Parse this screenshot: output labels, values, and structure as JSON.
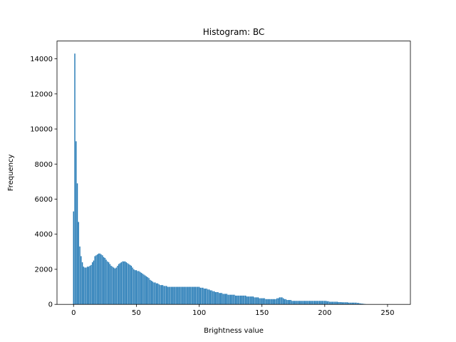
{
  "chart_data": {
    "type": "bar",
    "title": "Histogram: BC",
    "xlabel": "Brightness value",
    "ylabel": "Frequency",
    "color": "#1f77b4",
    "x": [
      0,
      1,
      2,
      3,
      4,
      5,
      6,
      7,
      8,
      9,
      10,
      11,
      12,
      13,
      14,
      15,
      16,
      17,
      18,
      19,
      20,
      21,
      22,
      23,
      24,
      25,
      26,
      27,
      28,
      29,
      30,
      31,
      32,
      33,
      34,
      35,
      36,
      37,
      38,
      39,
      40,
      41,
      42,
      43,
      44,
      45,
      46,
      47,
      48,
      49,
      50,
      51,
      52,
      53,
      54,
      55,
      56,
      57,
      58,
      59,
      60,
      61,
      62,
      63,
      64,
      65,
      66,
      67,
      68,
      69,
      70,
      71,
      72,
      73,
      74,
      75,
      76,
      77,
      78,
      79,
      80,
      81,
      82,
      83,
      84,
      85,
      86,
      87,
      88,
      89,
      90,
      91,
      92,
      93,
      94,
      95,
      96,
      97,
      98,
      99,
      100,
      101,
      102,
      103,
      104,
      105,
      106,
      107,
      108,
      109,
      110,
      111,
      112,
      113,
      114,
      115,
      116,
      117,
      118,
      119,
      120,
      121,
      122,
      123,
      124,
      125,
      126,
      127,
      128,
      129,
      130,
      131,
      132,
      133,
      134,
      135,
      136,
      137,
      138,
      139,
      140,
      141,
      142,
      143,
      144,
      145,
      146,
      147,
      148,
      149,
      150,
      151,
      152,
      153,
      154,
      155,
      156,
      157,
      158,
      159,
      160,
      161,
      162,
      163,
      164,
      165,
      166,
      167,
      168,
      169,
      170,
      171,
      172,
      173,
      174,
      175,
      176,
      177,
      178,
      179,
      180,
      181,
      182,
      183,
      184,
      185,
      186,
      187,
      188,
      189,
      190,
      191,
      192,
      193,
      194,
      195,
      196,
      197,
      198,
      199,
      200,
      201,
      202,
      203,
      204,
      205,
      206,
      207,
      208,
      209,
      210,
      211,
      212,
      213,
      214,
      215,
      216,
      217,
      218,
      219,
      220,
      221,
      222,
      223,
      224,
      225,
      226,
      227,
      228,
      229,
      230,
      231,
      232,
      233,
      234,
      235,
      236,
      237,
      238,
      239,
      240,
      241,
      242,
      243,
      244,
      245,
      246,
      247,
      248,
      249,
      250,
      251,
      252,
      253,
      254,
      255
    ],
    "values": [
      5300,
      14300,
      9300,
      6900,
      4700,
      3300,
      2750,
      2400,
      2150,
      2100,
      2100,
      2150,
      2150,
      2200,
      2250,
      2400,
      2500,
      2750,
      2800,
      2850,
      2900,
      2900,
      2850,
      2800,
      2700,
      2650,
      2550,
      2450,
      2400,
      2300,
      2200,
      2150,
      2100,
      2050,
      2100,
      2200,
      2300,
      2350,
      2400,
      2450,
      2450,
      2450,
      2400,
      2350,
      2300,
      2250,
      2200,
      2100,
      2000,
      1950,
      1950,
      1900,
      1900,
      1850,
      1800,
      1750,
      1700,
      1650,
      1600,
      1550,
      1500,
      1400,
      1350,
      1300,
      1250,
      1250,
      1200,
      1200,
      1150,
      1100,
      1100,
      1100,
      1050,
      1050,
      1050,
      1000,
      1000,
      1000,
      1000,
      1000,
      1000,
      1000,
      1000,
      1000,
      1000,
      1000,
      1000,
      1000,
      1000,
      1000,
      1000,
      1000,
      1000,
      1000,
      1000,
      1000,
      1000,
      1000,
      1000,
      1000,
      1000,
      950,
      950,
      950,
      900,
      900,
      900,
      850,
      850,
      800,
      800,
      750,
      750,
      700,
      700,
      700,
      650,
      650,
      650,
      600,
      600,
      600,
      600,
      550,
      550,
      550,
      550,
      550,
      550,
      500,
      500,
      500,
      500,
      500,
      500,
      500,
      500,
      500,
      450,
      450,
      450,
      450,
      450,
      450,
      400,
      400,
      400,
      400,
      350,
      350,
      350,
      350,
      350,
      300,
      300,
      300,
      300,
      300,
      300,
      300,
      300,
      300,
      350,
      350,
      400,
      400,
      400,
      350,
      300,
      300,
      250,
      250,
      250,
      250,
      200,
      200,
      200,
      200,
      200,
      200,
      200,
      200,
      200,
      200,
      200,
      200,
      200,
      200,
      200,
      200,
      200,
      200,
      200,
      200,
      200,
      200,
      200,
      200,
      200,
      200,
      200,
      200,
      180,
      180,
      150,
      150,
      150,
      150,
      150,
      150,
      150,
      130,
      130,
      130,
      120,
      120,
      120,
      120,
      120,
      100,
      100,
      100,
      100,
      100,
      100,
      100,
      80,
      80,
      60,
      50,
      40,
      30,
      20,
      10,
      5,
      0,
      0,
      0,
      0,
      0,
      0,
      0,
      0,
      0,
      0,
      0,
      0,
      0,
      0,
      0,
      0,
      0,
      0,
      0,
      0,
      0
    ],
    "xlim": [
      -13.19,
      268.19
    ],
    "xticks": [
      0,
      50,
      100,
      150,
      200,
      250
    ],
    "ylim": [
      0,
      15015
    ],
    "yticks": [
      0,
      2000,
      4000,
      6000,
      8000,
      10000,
      12000,
      14000
    ]
  }
}
